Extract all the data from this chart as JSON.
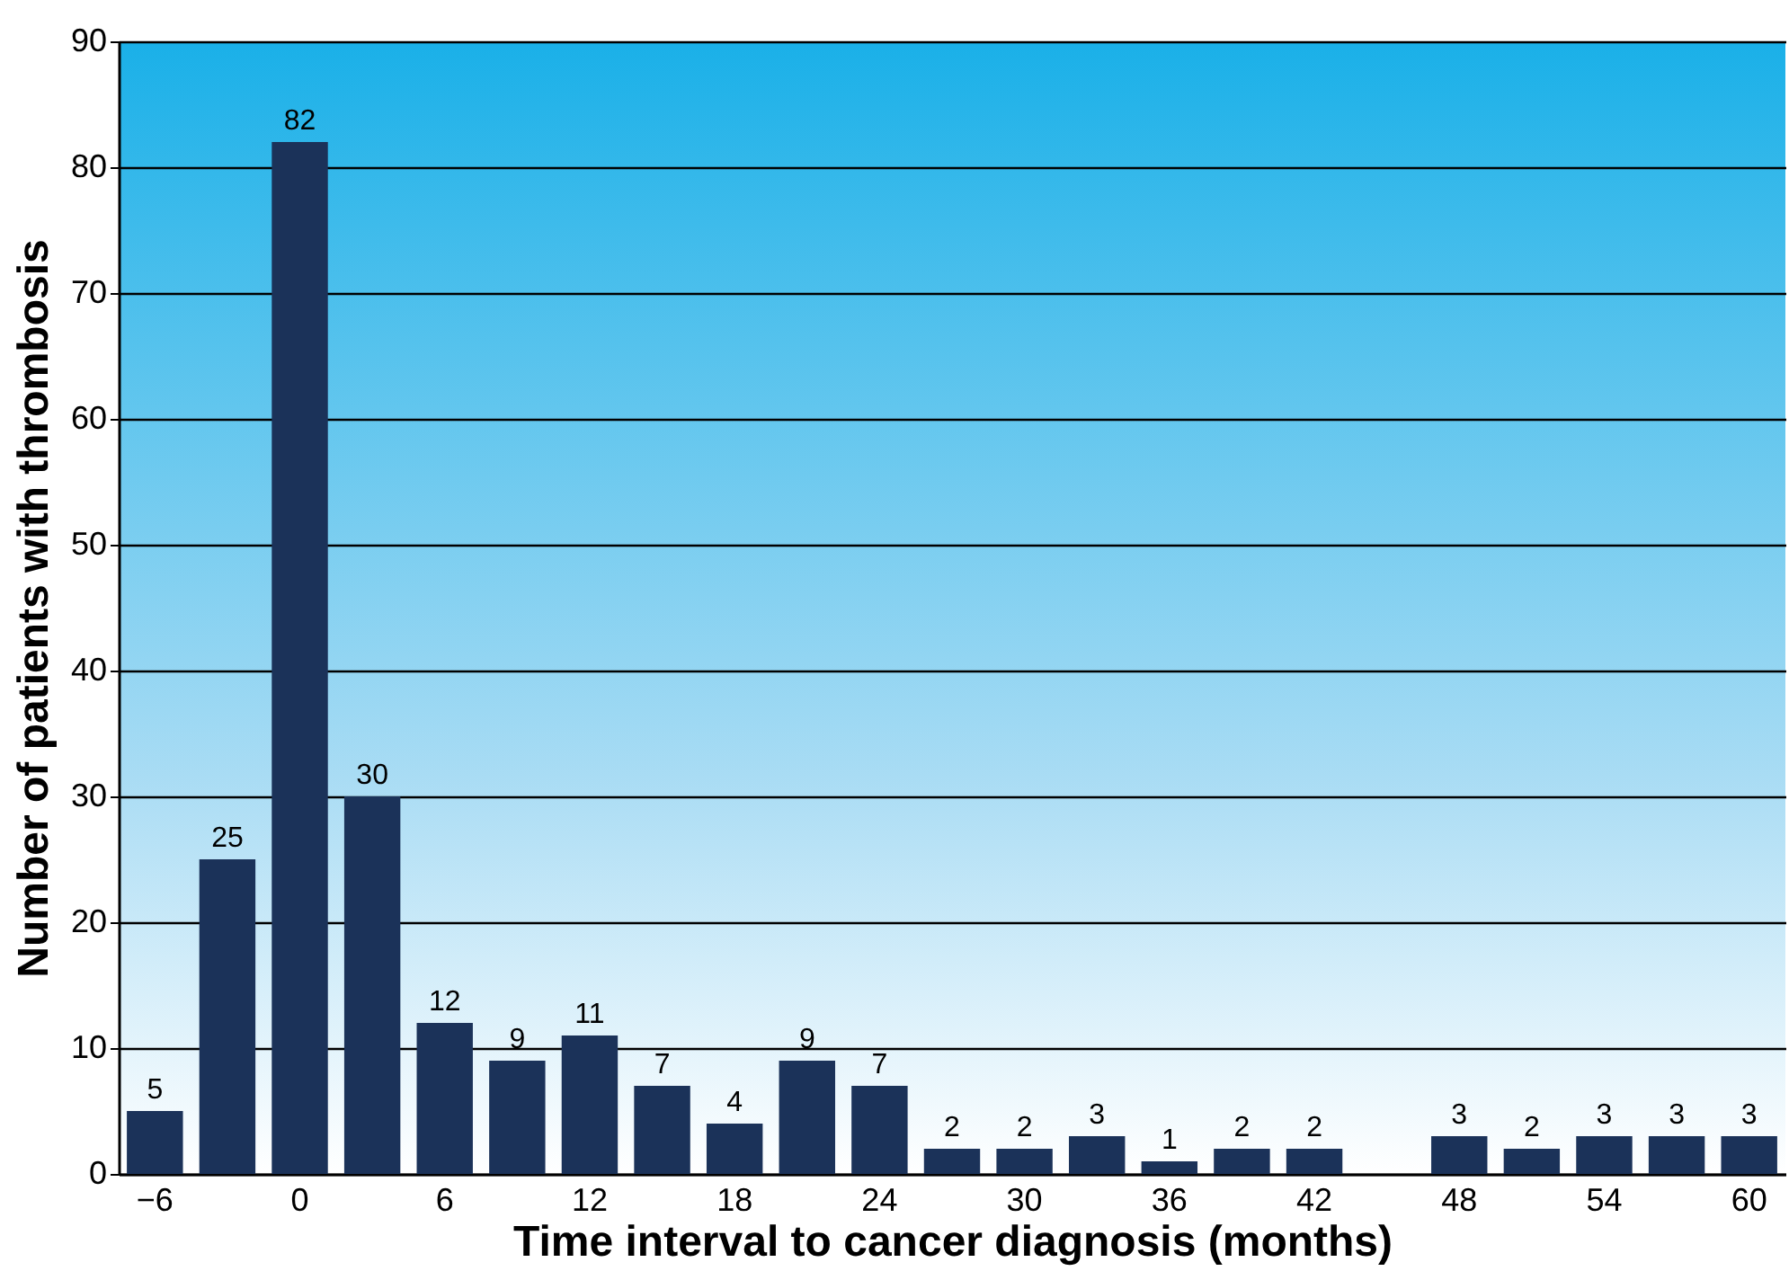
{
  "chart_data": {
    "type": "bar",
    "xlabel": "Time interval to cancer diagnosis (months)",
    "ylabel": "Number of patients with thrombosis",
    "categories": [
      "−6",
      null,
      "0",
      null,
      "6",
      null,
      "12",
      null,
      "18",
      null,
      "24",
      null,
      "30",
      null,
      "36",
      null,
      "42",
      null,
      "48",
      null,
      "54",
      null,
      "60"
    ],
    "values": [
      5,
      25,
      82,
      30,
      12,
      9,
      11,
      7,
      4,
      9,
      7,
      2,
      2,
      3,
      1,
      2,
      2,
      null,
      3,
      2,
      3,
      3,
      3
    ],
    "color": "#1b3259",
    "ylim": [
      0,
      90
    ],
    "yticks": [
      0,
      10,
      20,
      30,
      40,
      50,
      60,
      70,
      80,
      90
    ],
    "grid": "y",
    "data_labels": true
  }
}
